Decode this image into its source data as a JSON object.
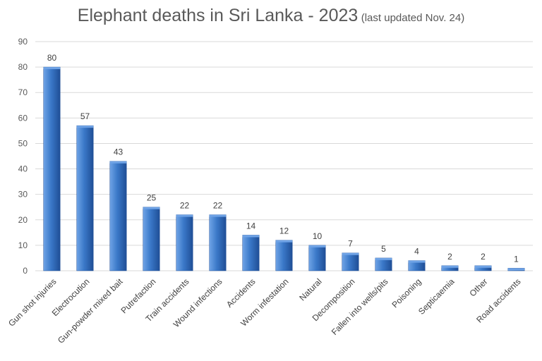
{
  "chart_data": {
    "type": "bar",
    "title": "Elephant deaths in Sri Lanka - 2023",
    "subtitle": "(last updated Nov. 24)",
    "categories": [
      "Gun shot injuries",
      "Electrocution",
      "Gun-powder mixed bait",
      "Putrefaction",
      "Train accidents",
      "Wound infections",
      "Accidents",
      "Worm infestation",
      "Natural",
      "Decomposition",
      "Fallen into wells/pits",
      "Poisoning",
      "Septicaemia",
      "Other",
      "Road accidents"
    ],
    "values": [
      80,
      57,
      43,
      25,
      22,
      22,
      14,
      12,
      10,
      7,
      5,
      4,
      2,
      2,
      1
    ],
    "data_labels": [
      "80",
      "57",
      "43",
      "25",
      "22",
      "22",
      "14",
      "12",
      "10",
      "7",
      "5",
      "4",
      "2",
      "2",
      "1"
    ],
    "xlabel": "",
    "ylabel": "",
    "ylim": [
      0,
      90
    ],
    "yticks": [
      "0",
      "10",
      "20",
      "30",
      "40",
      "50",
      "60",
      "70",
      "80",
      "90"
    ],
    "grid": true,
    "legend": "none",
    "colors": {
      "bar": "#3a78c8",
      "bar_light": "#6fa3e6",
      "bar_dark": "#1f4e96",
      "grid": "#d9d9d9",
      "text": "#595959"
    }
  }
}
